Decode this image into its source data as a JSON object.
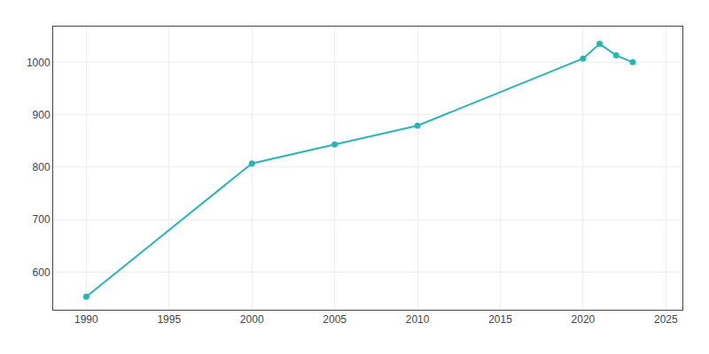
{
  "chart_data": {
    "type": "line",
    "x": [
      1990,
      2000,
      2005,
      2010,
      2020,
      2021,
      2022,
      2023
    ],
    "values": [
      553,
      807,
      843,
      879,
      1007,
      1035,
      1013,
      1000
    ],
    "color": "#2ab5b5",
    "marker": "circle",
    "xlim": [
      1988,
      2026
    ],
    "ylim": [
      528,
      1068
    ],
    "xticks": [
      1990,
      1995,
      2000,
      2005,
      2010,
      2015,
      2020,
      2025
    ],
    "yticks": [
      600,
      700,
      800,
      900,
      1000
    ],
    "grid": true
  }
}
